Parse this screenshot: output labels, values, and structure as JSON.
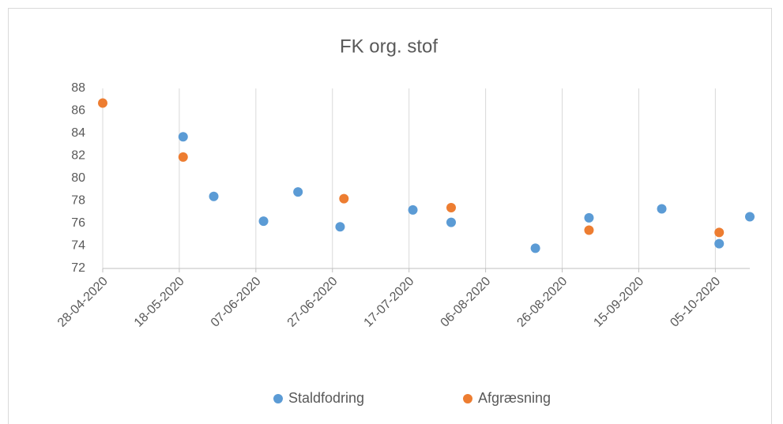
{
  "chart_data": {
    "type": "scatter",
    "title": "FK org. stof",
    "series": [
      {
        "name": "Staldfodring",
        "color": "#5b9bd5",
        "x": [
          "19-05-2020",
          "27-05-2020",
          "09-06-2020",
          "18-06-2020",
          "29-06-2020",
          "18-07-2020",
          "28-07-2020",
          "19-08-2020",
          "02-09-2020",
          "21-09-2020",
          "06-10-2020",
          "14-10-2020"
        ],
        "values": [
          83.7,
          78.4,
          76.2,
          78.8,
          75.7,
          77.2,
          76.1,
          73.8,
          76.5,
          77.3,
          74.2,
          76.6
        ]
      },
      {
        "name": "Afgræsning",
        "color": "#ed7d31",
        "x": [
          "28-04-2020",
          "19-05-2020",
          "30-06-2020",
          "28-07-2020",
          "02-09-2020",
          "06-10-2020"
        ],
        "values": [
          86.7,
          81.9,
          78.2,
          77.4,
          75.4,
          75.2
        ]
      }
    ],
    "xlim": [
      "28-04-2020",
      "14-10-2020"
    ],
    "xticks": [
      "28-04-2020",
      "18-05-2020",
      "07-06-2020",
      "27-06-2020",
      "17-07-2020",
      "06-08-2020",
      "26-08-2020",
      "15-09-2020",
      "05-10-2020"
    ],
    "ylim": [
      72,
      88
    ],
    "yticks": [
      72,
      74,
      76,
      78,
      80,
      82,
      84,
      86,
      88
    ],
    "grid": true,
    "legend": "bottom"
  }
}
